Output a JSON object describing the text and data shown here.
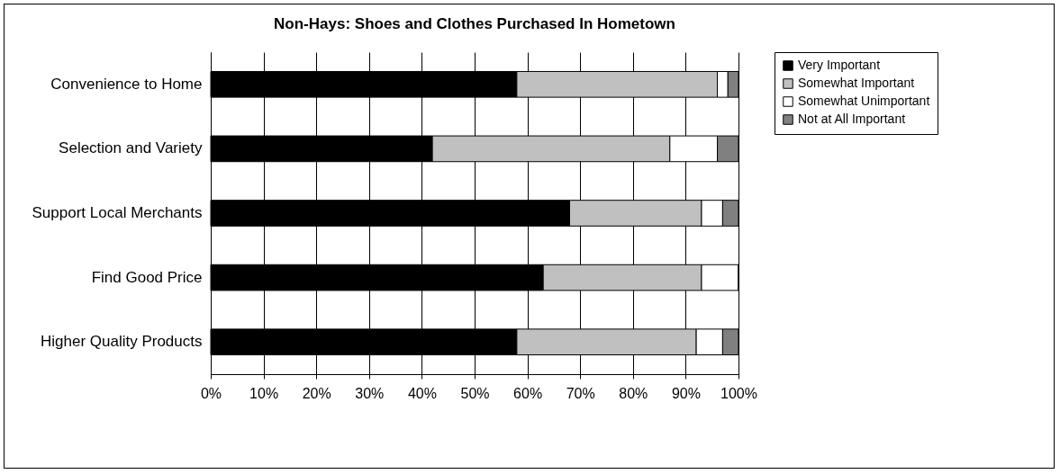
{
  "chart_data": {
    "type": "bar",
    "orientation": "horizontal",
    "stacked": true,
    "title": "Non-Hays: Shoes and Clothes Purchased In Hometown",
    "categories": [
      "Convenience to Home",
      "Selection and Variety",
      "Support Local Merchants",
      "Find Good Price",
      "Higher Quality Products"
    ],
    "series": [
      {
        "name": "Very Important",
        "color": "#000000",
        "values": [
          58,
          42,
          68,
          63,
          58
        ]
      },
      {
        "name": "Somewhat Important",
        "color": "#c0c0c0",
        "values": [
          38,
          45,
          25,
          30,
          34
        ]
      },
      {
        "name": "Somewhat Unimportant",
        "color": "#ffffff",
        "values": [
          2,
          9,
          4,
          7,
          5
        ]
      },
      {
        "name": "Not at All Important",
        "color": "#808080",
        "values": [
          2,
          4,
          3,
          0,
          3
        ]
      }
    ],
    "xlim": [
      0,
      100
    ],
    "xticks": [
      {
        "value": 0,
        "label": "0%"
      },
      {
        "value": 10,
        "label": "10%"
      },
      {
        "value": 20,
        "label": "20%"
      },
      {
        "value": 30,
        "label": "30%"
      },
      {
        "value": 40,
        "label": "40%"
      },
      {
        "value": 50,
        "label": "50%"
      },
      {
        "value": 60,
        "label": "60%"
      },
      {
        "value": 70,
        "label": "70%"
      },
      {
        "value": 80,
        "label": "80%"
      },
      {
        "value": 90,
        "label": "90%"
      },
      {
        "value": 100,
        "label": "100%"
      }
    ],
    "grid": "x",
    "legend": "right"
  }
}
